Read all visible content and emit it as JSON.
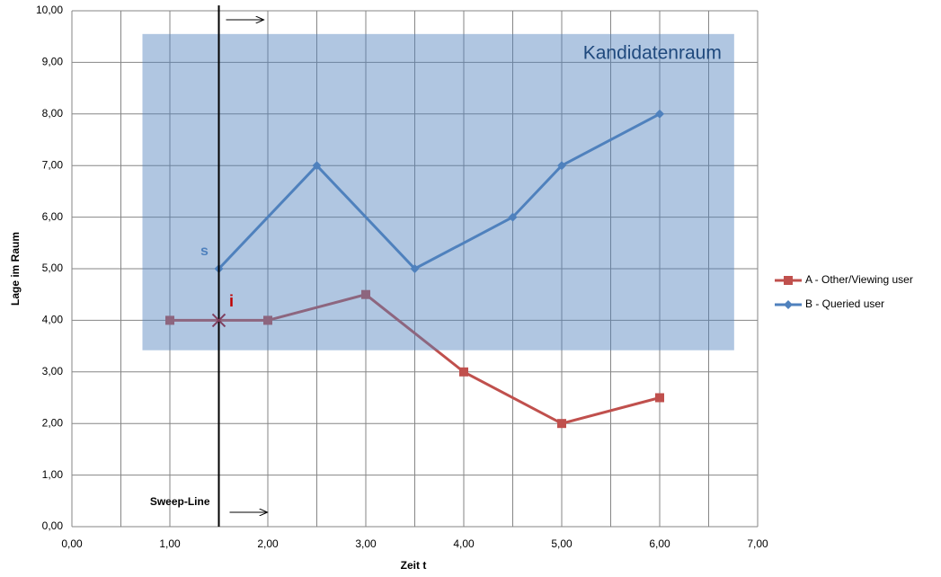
{
  "chart_data": {
    "type": "line",
    "x_label": "Zeit t",
    "y_label": "Lage im Raum",
    "xlim": [
      0,
      7
    ],
    "ylim": [
      0,
      10
    ],
    "xticks": [
      {
        "value": 0,
        "label": "0,00"
      },
      {
        "value": 1,
        "label": "1,00"
      },
      {
        "value": 2,
        "label": "2,00"
      },
      {
        "value": 3,
        "label": "3,00"
      },
      {
        "value": 4,
        "label": "4,00"
      },
      {
        "value": 5,
        "label": "5,00"
      },
      {
        "value": 6,
        "label": "6,00"
      },
      {
        "value": 7,
        "label": "7,00"
      }
    ],
    "yticks": [
      {
        "value": 0,
        "label": "0,00"
      },
      {
        "value": 1,
        "label": "1,00"
      },
      {
        "value": 2,
        "label": "2,00"
      },
      {
        "value": 3,
        "label": "3,00"
      },
      {
        "value": 4,
        "label": "4,00"
      },
      {
        "value": 5,
        "label": "5,00"
      },
      {
        "value": 6,
        "label": "6,00"
      },
      {
        "value": 7,
        "label": "7,00"
      },
      {
        "value": 8,
        "label": "8,00"
      },
      {
        "value": 9,
        "label": "9,00"
      },
      {
        "value": 10,
        "label": "10,00"
      }
    ],
    "grid": true,
    "legend": "right",
    "series": [
      {
        "name": "A - Other/Viewing user",
        "color": "#c0504d",
        "marker": "square",
        "x": [
          1,
          2,
          3,
          4,
          5,
          6
        ],
        "values": [
          4,
          4,
          4.5,
          3,
          2,
          2.5
        ]
      },
      {
        "name": "B - Queried user",
        "color": "#4f81bd",
        "marker": "diamond",
        "x": [
          1.5,
          2.5,
          3.5,
          4.5,
          5,
          6
        ],
        "values": [
          5,
          7,
          5,
          6,
          7,
          8
        ]
      }
    ],
    "region": {
      "label": "Kandidatenraum",
      "xlim": [
        0.72,
        6.76
      ],
      "ylim": [
        3.42,
        9.55
      ],
      "color": "#4f81bd"
    },
    "start_label": "s",
    "intersection": {
      "label": "i",
      "x": 1.5,
      "y": 4,
      "color": "#7f3f5f"
    },
    "sweep_line": {
      "label": "Sweep-Line",
      "x": 1.5
    }
  }
}
